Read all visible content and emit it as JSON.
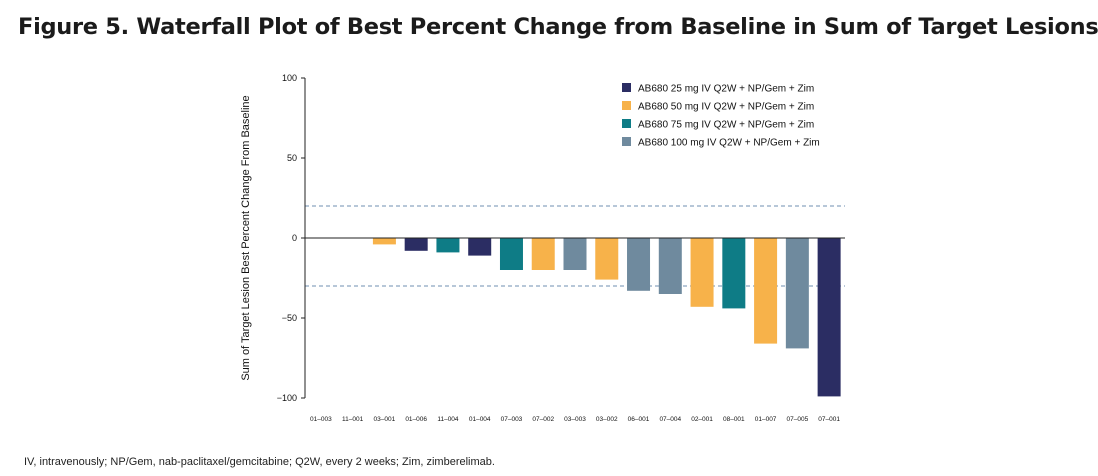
{
  "figure_title": "Figure 5. Waterfall Plot of Best Percent Change from Baseline in Sum of Target Lesions",
  "footnote": "IV, intravenously; NP/Gem, nab-paclitaxel/gemcitabine; Q2W, every 2 weeks; Zim, zimberelimab.",
  "chart_data": {
    "type": "bar",
    "title": "Figure 5. Waterfall Plot of Best Percent Change from Baseline in Sum of Target Lesions",
    "xlabel": "",
    "ylabel": "Sum of Target Lesion Best Percent Change From Baseline",
    "ylim": [
      -100,
      100
    ],
    "yticks": [
      100,
      50,
      0,
      -50,
      -100
    ],
    "reference_lines": [
      20,
      -30
    ],
    "grid": false,
    "legend_position": "top-right",
    "series": [
      {
        "name": "AB680 25 mg IV Q2W + NP/Gem + Zim",
        "color": "#2b2d63"
      },
      {
        "name": "AB680 50 mg IV Q2W + NP/Gem + Zim",
        "color": "#f7b24a"
      },
      {
        "name": "AB680 75 mg IV Q2W + NP/Gem + Zim",
        "color": "#0e7c86"
      },
      {
        "name": "AB680 100 mg IV Q2W + NP/Gem + Zim",
        "color": "#6f8a9e"
      }
    ],
    "categories": [
      "01-003",
      "11-001",
      "03-001",
      "01-006",
      "11-004",
      "01-004",
      "07-003",
      "07-002",
      "03-003",
      "03-002",
      "06-001",
      "07-004",
      "02-001",
      "08-001",
      "01-007",
      "07-005",
      "07-001"
    ],
    "values": [
      0,
      0,
      -4,
      -8,
      -9,
      -11,
      -20,
      -20,
      -20,
      -26,
      -33,
      -35,
      -43,
      -44,
      -66,
      -69,
      -99
    ],
    "series_index": [
      0,
      0,
      1,
      0,
      2,
      0,
      2,
      1,
      3,
      1,
      3,
      3,
      1,
      2,
      1,
      3,
      0
    ]
  }
}
